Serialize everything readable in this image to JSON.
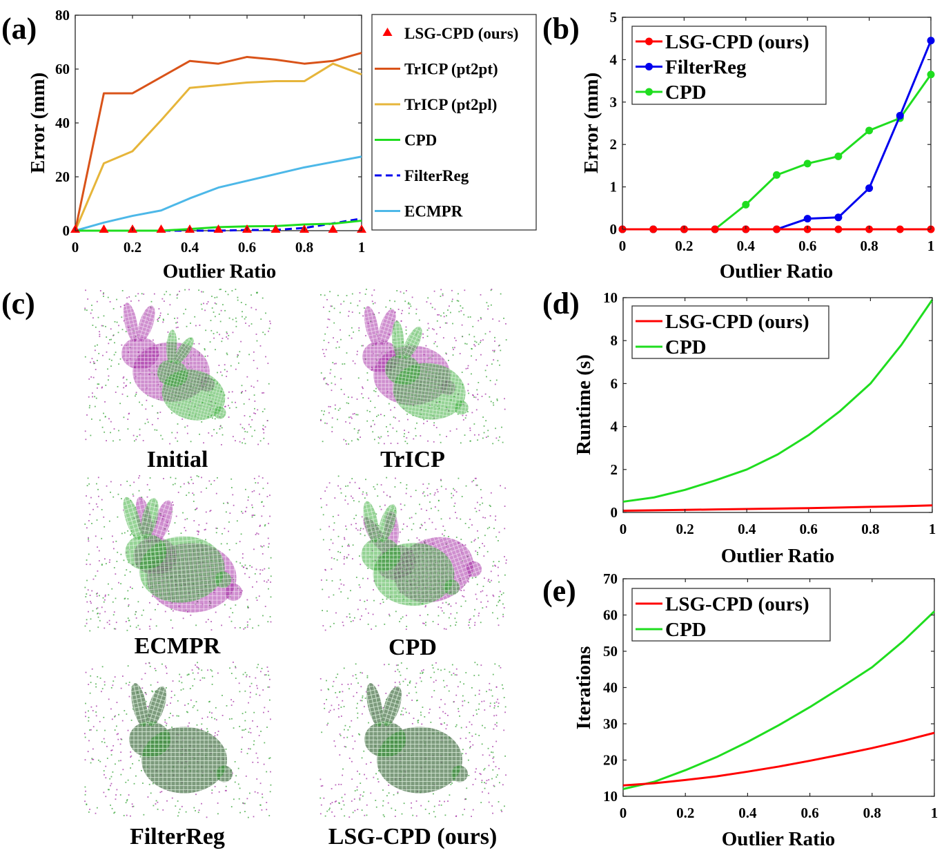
{
  "figure": {
    "panel_labels": [
      "(a)",
      "(b)",
      "(c)",
      "(d)",
      "(e)"
    ]
  },
  "chart_data": [
    {
      "id": "a",
      "type": "line",
      "xlabel": "Outlier Ratio",
      "ylabel": "Error (mm)",
      "xlim": [
        0,
        1
      ],
      "ylim": [
        0,
        80
      ],
      "xticks": [
        0,
        0.2,
        0.4,
        0.6,
        0.8,
        1
      ],
      "xtick_labels": [
        "0",
        "0.2",
        "0.4",
        "0.6",
        "0.8",
        "1"
      ],
      "yticks": [
        0,
        20,
        40,
        60,
        80
      ],
      "ytick_labels": [
        "0",
        "20",
        "40",
        "60",
        "80"
      ],
      "legend_position": "outside-right",
      "series": [
        {
          "name": "LSG-CPD (ours)",
          "color": "#ff0000",
          "style": "marker-triangle",
          "x": [
            0,
            0.1,
            0.2,
            0.3,
            0.4,
            0.5,
            0.6,
            0.7,
            0.8,
            0.9,
            1.0
          ],
          "y": [
            0,
            0,
            0,
            0,
            0,
            0,
            0,
            0,
            0,
            0,
            0
          ]
        },
        {
          "name": "TrICP (pt2pt)",
          "color": "#d95319",
          "style": "solid",
          "x": [
            0,
            0.1,
            0.2,
            0.3,
            0.4,
            0.5,
            0.6,
            0.7,
            0.8,
            0.9,
            1.0
          ],
          "y": [
            0,
            51,
            51,
            57,
            63,
            62,
            64.5,
            63.5,
            62,
            63,
            66
          ]
        },
        {
          "name": "TrICP (pt2pl)",
          "color": "#e6b53a",
          "style": "solid",
          "x": [
            0,
            0.1,
            0.2,
            0.3,
            0.4,
            0.5,
            0.6,
            0.7,
            0.8,
            0.9,
            1.0
          ],
          "y": [
            0,
            25,
            29.5,
            41,
            53,
            54,
            55,
            55.5,
            55.5,
            62,
            58
          ]
        },
        {
          "name": "CPD",
          "color": "#1fdd1f",
          "style": "solid",
          "x": [
            0,
            0.1,
            0.2,
            0.3,
            0.4,
            0.5,
            0.6,
            0.7,
            0.8,
            0.9,
            1.0
          ],
          "y": [
            0,
            0,
            0,
            0,
            0.6,
            1.3,
            1.6,
            1.7,
            2.3,
            2.6,
            3.7
          ]
        },
        {
          "name": "FilterReg",
          "color": "#0000ee",
          "style": "dashed",
          "x": [
            0,
            0.1,
            0.2,
            0.3,
            0.4,
            0.5,
            0.6,
            0.7,
            0.8,
            0.9,
            1.0
          ],
          "y": [
            0,
            0,
            0,
            0,
            0,
            0,
            0.25,
            0.3,
            1.0,
            2.7,
            4.5
          ]
        },
        {
          "name": "ECMPR",
          "color": "#4db8e8",
          "style": "solid",
          "x": [
            0,
            0.1,
            0.2,
            0.3,
            0.4,
            0.5,
            0.6,
            0.7,
            0.8,
            0.9,
            1.0
          ],
          "y": [
            0,
            3,
            5.5,
            7.5,
            12,
            16,
            18.5,
            21,
            23.5,
            25.5,
            27.5
          ]
        }
      ]
    },
    {
      "id": "b",
      "type": "line",
      "xlabel": "Outlier Ratio",
      "ylabel": "Error (mm)",
      "xlim": [
        0,
        1
      ],
      "ylim": [
        0,
        5
      ],
      "xticks": [
        0,
        0.2,
        0.4,
        0.6,
        0.8,
        1
      ],
      "xtick_labels": [
        "0",
        "0.2",
        "0.4",
        "0.6",
        "0.8",
        "1"
      ],
      "yticks": [
        0,
        1,
        2,
        3,
        4,
        5
      ],
      "ytick_labels": [
        "0",
        "1",
        "2",
        "3",
        "4",
        "5"
      ],
      "legend_position": "top-left",
      "series": [
        {
          "name": "LSG-CPD (ours)",
          "color": "#ff0000",
          "style": "solid-dot",
          "x": [
            0,
            0.1,
            0.2,
            0.3,
            0.4,
            0.5,
            0.6,
            0.7,
            0.8,
            0.9,
            1.0
          ],
          "y": [
            0,
            0,
            0,
            0,
            0,
            0,
            0,
            0,
            0,
            0,
            0
          ]
        },
        {
          "name": "FilterReg",
          "color": "#0000ee",
          "style": "solid-dot",
          "x": [
            0,
            0.1,
            0.2,
            0.3,
            0.4,
            0.5,
            0.6,
            0.7,
            0.8,
            0.9,
            1.0
          ],
          "y": [
            0,
            0,
            0,
            0,
            0,
            0,
            0.25,
            0.28,
            0.97,
            2.68,
            4.45
          ]
        },
        {
          "name": "CPD",
          "color": "#1fdd1f",
          "style": "solid-dot",
          "x": [
            0,
            0.1,
            0.2,
            0.3,
            0.4,
            0.5,
            0.6,
            0.7,
            0.8,
            0.9,
            1.0
          ],
          "y": [
            0,
            0,
            0,
            0,
            0.58,
            1.28,
            1.55,
            1.72,
            2.33,
            2.62,
            3.65
          ]
        }
      ]
    },
    {
      "id": "c",
      "type": "image-grid",
      "captions": [
        "Initial",
        "TrICP",
        "ECMPR",
        "CPD",
        "FilterReg",
        "LSG-CPD (ours)"
      ]
    },
    {
      "id": "d",
      "type": "line",
      "xlabel": "Outlier Ratio",
      "ylabel": "Runtime (s)",
      "xlim": [
        0,
        1
      ],
      "ylim": [
        0,
        10
      ],
      "xticks": [
        0,
        0.2,
        0.4,
        0.6,
        0.8,
        1
      ],
      "xtick_labels": [
        "0",
        "0.2",
        "0.4",
        "0.6",
        "0.8",
        "1"
      ],
      "yticks": [
        0,
        2,
        4,
        6,
        8,
        10
      ],
      "ytick_labels": [
        "0",
        "2",
        "4",
        "6",
        "8",
        "10"
      ],
      "legend_position": "top-left",
      "series": [
        {
          "name": "LSG-CPD (ours)",
          "color": "#ff0000",
          "style": "solid",
          "x": [
            0,
            0.1,
            0.2,
            0.3,
            0.4,
            0.5,
            0.6,
            0.7,
            0.8,
            0.9,
            1.0
          ],
          "y": [
            0.08,
            0.1,
            0.12,
            0.14,
            0.16,
            0.18,
            0.2,
            0.23,
            0.26,
            0.29,
            0.33
          ]
        },
        {
          "name": "CPD",
          "color": "#1fdd1f",
          "style": "solid",
          "x": [
            0,
            0.1,
            0.2,
            0.3,
            0.4,
            0.5,
            0.6,
            0.7,
            0.8,
            0.9,
            1.0
          ],
          "y": [
            0.5,
            0.7,
            1.05,
            1.5,
            2.0,
            2.7,
            3.6,
            4.7,
            6.0,
            7.8,
            9.9
          ]
        }
      ]
    },
    {
      "id": "e",
      "type": "line",
      "xlabel": "Outlier Ratio",
      "ylabel": "Iterations",
      "xlim": [
        0,
        1
      ],
      "ylim": [
        10,
        70
      ],
      "xticks": [
        0,
        0.2,
        0.4,
        0.6,
        0.8,
        1
      ],
      "xtick_labels": [
        "0",
        "0.2",
        "0.4",
        "0.6",
        "0.8",
        "1"
      ],
      "yticks": [
        10,
        20,
        30,
        40,
        50,
        60,
        70
      ],
      "ytick_labels": [
        "10",
        "20",
        "30",
        "40",
        "50",
        "60",
        "70"
      ],
      "legend_position": "top-left",
      "series": [
        {
          "name": "LSG-CPD (ours)",
          "color": "#ff0000",
          "style": "solid",
          "x": [
            0,
            0.1,
            0.2,
            0.3,
            0.4,
            0.5,
            0.6,
            0.7,
            0.8,
            0.9,
            1.0
          ],
          "y": [
            13,
            13.6,
            14.5,
            15.5,
            16.8,
            18.2,
            19.8,
            21.5,
            23.3,
            25.3,
            27.5
          ]
        },
        {
          "name": "CPD",
          "color": "#1fdd1f",
          "style": "solid",
          "x": [
            0,
            0.1,
            0.2,
            0.3,
            0.4,
            0.5,
            0.6,
            0.7,
            0.8,
            0.9,
            1.0
          ],
          "y": [
            12,
            14,
            17.2,
            20.8,
            25,
            29.6,
            34.6,
            40,
            45.6,
            52.8,
            61
          ]
        }
      ]
    }
  ]
}
